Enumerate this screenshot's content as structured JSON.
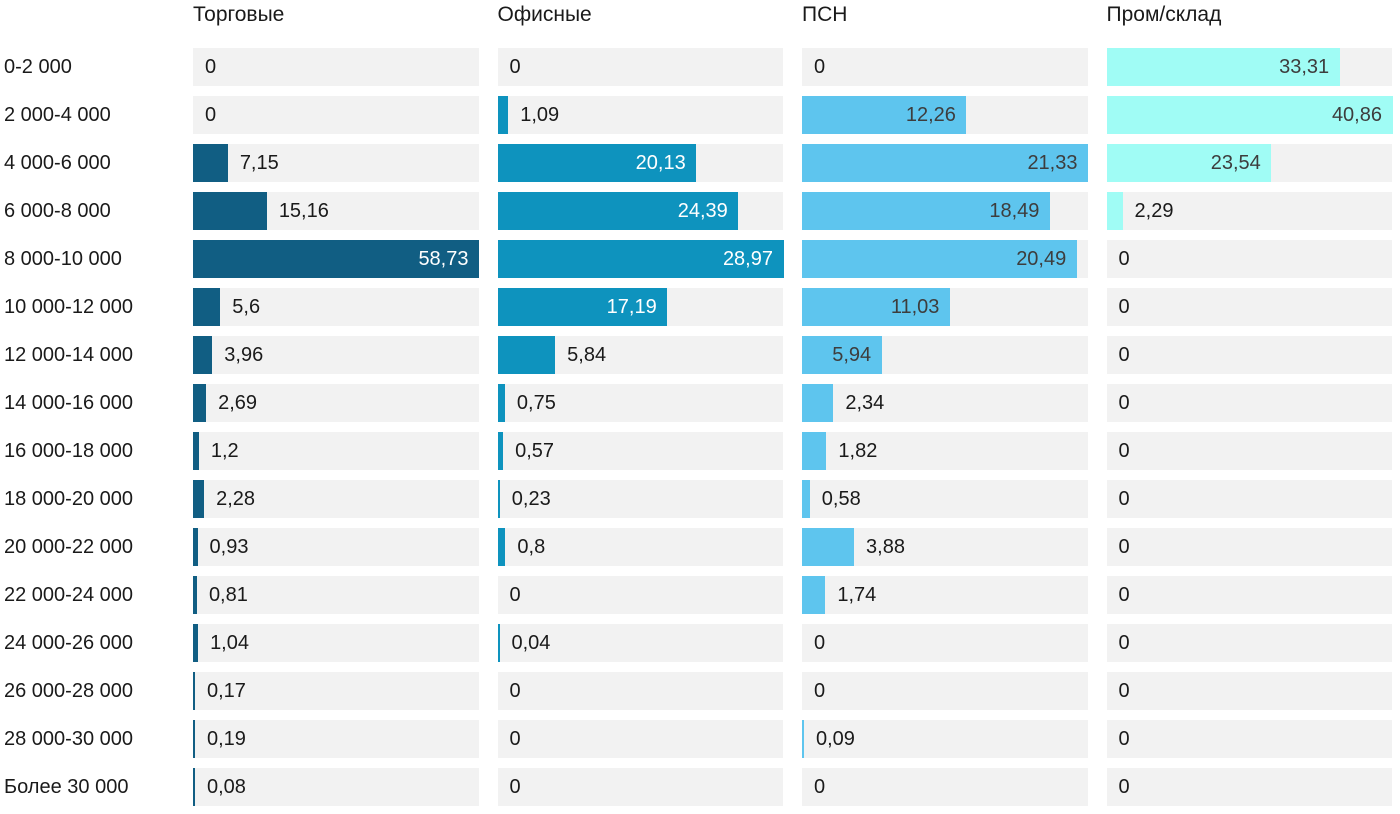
{
  "chart_data": {
    "type": "bar",
    "orientation": "horizontal",
    "title": "",
    "xlabel": "",
    "ylabel": "",
    "grid": false,
    "legend_position": "column-headers",
    "scaling": "each column scaled independently to its own max value",
    "track_color": "#f2f2f2",
    "outside_text_color": "#1a1a1a",
    "categories": [
      "0-2 000",
      "2 000-4 000",
      "4 000-6 000",
      "6 000-8 000",
      "8 000-10 000",
      "10 000-12 000",
      "12 000-14 000",
      "14 000-16 000",
      "16 000-18 000",
      "18 000-20 000",
      "20 000-22 000",
      "22 000-24 000",
      "24 000-26 000",
      "26 000-28 000",
      "28 000-30 000",
      "Более 30 000"
    ],
    "series": [
      {
        "name": "Торговые",
        "color": "#115E83",
        "inside_text_color": "#ffffff",
        "max": 58.73,
        "values": [
          0,
          0,
          7.15,
          15.16,
          58.73,
          5.6,
          3.96,
          2.69,
          1.2,
          2.28,
          0.93,
          0.81,
          1.04,
          0.17,
          0.19,
          0.08
        ],
        "labels": [
          "0",
          "0",
          "7,15",
          "15,16",
          "58,73",
          "5,6",
          "3,96",
          "2,69",
          "1,2",
          "2,28",
          "0,93",
          "0,81",
          "1,04",
          "0,17",
          "0,19",
          "0,08"
        ]
      },
      {
        "name": "Офисные",
        "color": "#0E93BE",
        "inside_text_color": "#ffffff",
        "max": 28.97,
        "values": [
          0,
          1.09,
          20.13,
          24.39,
          28.97,
          17.19,
          5.84,
          0.75,
          0.57,
          0.23,
          0.8,
          0,
          0.04,
          0,
          0,
          0
        ],
        "labels": [
          "0",
          "1,09",
          "20,13",
          "24,39",
          "28,97",
          "17,19",
          "5,84",
          "0,75",
          "0,57",
          "0,23",
          "0,8",
          "0",
          "0,04",
          "0",
          "0",
          "0"
        ]
      },
      {
        "name": "ПСН",
        "color": "#5EC5EE",
        "inside_text_color": "#3d3d3d",
        "max": 21.33,
        "values": [
          0,
          12.26,
          21.33,
          18.49,
          20.49,
          11.03,
          5.94,
          2.34,
          1.82,
          0.58,
          3.88,
          1.74,
          0,
          0,
          0.09,
          0
        ],
        "labels": [
          "0",
          "12,26",
          "21,33",
          "18,49",
          "20,49",
          "11,03",
          "5,94",
          "2,34",
          "1,82",
          "0,58",
          "3,88",
          "1,74",
          "0",
          "0",
          "0,09",
          "0"
        ]
      },
      {
        "name": "Пром/склад",
        "color": "#A0FCF5",
        "inside_text_color": "#3d3d3d",
        "max": 40.86,
        "values": [
          33.31,
          40.86,
          23.54,
          2.29,
          0,
          0,
          0,
          0,
          0,
          0,
          0,
          0,
          0,
          0,
          0,
          0
        ],
        "labels": [
          "33,31",
          "40,86",
          "23,54",
          "2,29",
          "0",
          "0",
          "0",
          "0",
          "0",
          "0",
          "0",
          "0",
          "0",
          "0",
          "0",
          "0"
        ]
      }
    ]
  }
}
